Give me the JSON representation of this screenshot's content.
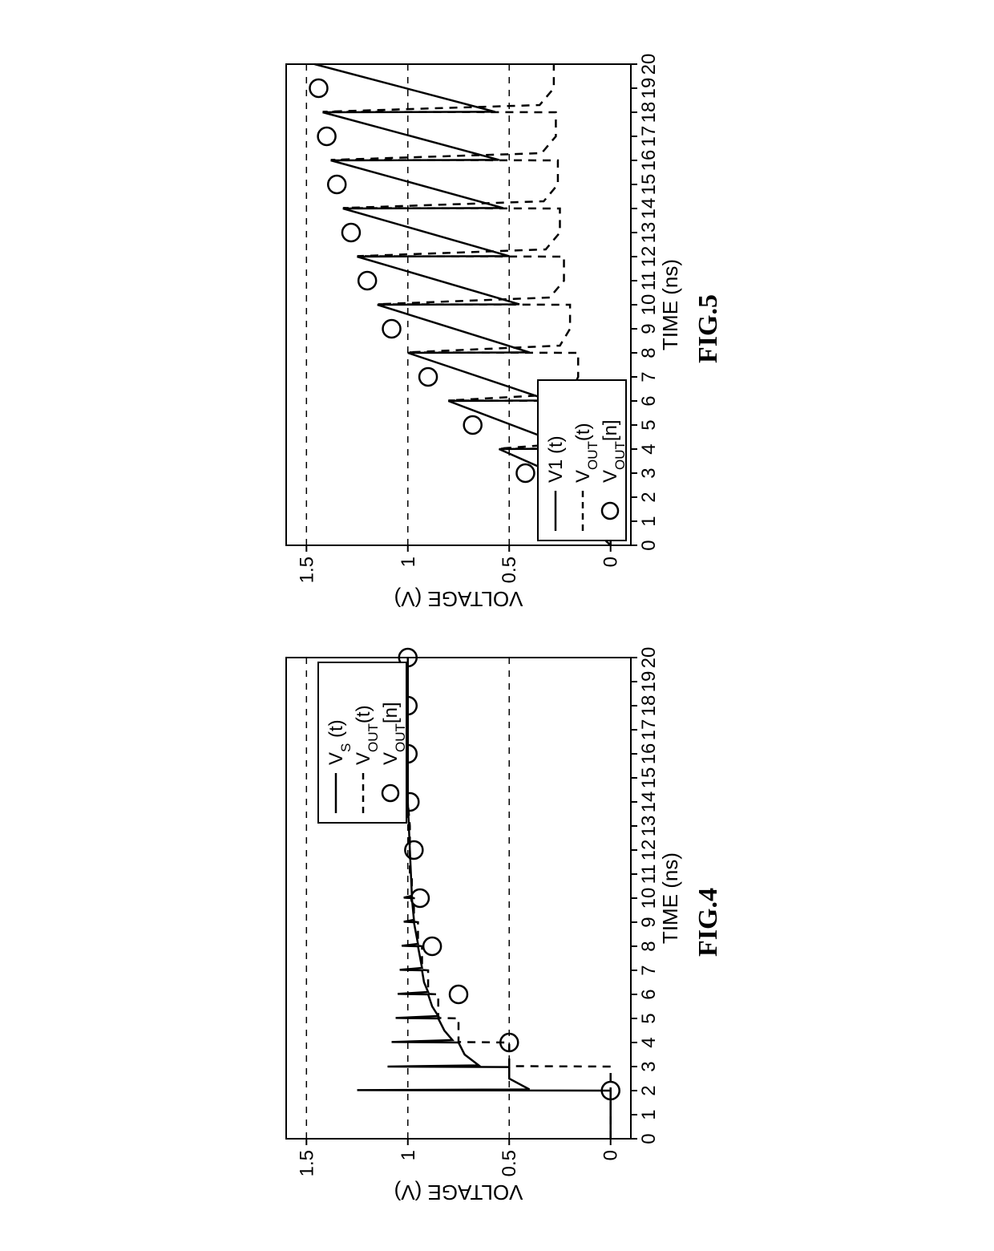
{
  "figure4": {
    "type": "line+scatter",
    "caption": "FIG.4",
    "xlabel": "TIME (ns)",
    "ylabel": "VOLTAGE (V)",
    "xlim": [
      0,
      20
    ],
    "ylim": [
      -0.1,
      1.6
    ],
    "xtick_step": 1,
    "ytick_step": 0.5,
    "yticks": [
      0,
      0.5,
      1,
      1.5
    ],
    "vgrid_y": [
      0.5,
      1.0,
      1.5
    ],
    "line_color": "#000000",
    "grid_color": "#000000",
    "grid_dash": "8,8",
    "background_color": "#ffffff",
    "axis_line_width": 2,
    "series_line_width": 2.5,
    "marker_radius": 11,
    "marker_stroke_width": 2.5,
    "label_fontsize": 26,
    "tick_fontsize": 24,
    "legend_fontsize": 24,
    "legend": {
      "position": "upper-right",
      "items": [
        {
          "style": "solid",
          "label_pre": "V",
          "label_sub": "S",
          "label_post": " (t)"
        },
        {
          "style": "dashed",
          "label_pre": "V",
          "label_sub": "OUT",
          "label_post": "(t)"
        },
        {
          "style": "marker",
          "label_pre": "V",
          "label_sub": "OUT",
          "label_post": "[n]"
        }
      ]
    },
    "vs_points": [
      [
        0,
        0
      ],
      [
        2,
        0
      ],
      [
        2.02,
        1.25
      ],
      [
        2.05,
        0.4
      ],
      [
        2.5,
        0.5
      ],
      [
        2.98,
        0.5
      ],
      [
        3,
        1.1
      ],
      [
        3.05,
        0.65
      ],
      [
        3.5,
        0.72
      ],
      [
        4,
        0.75
      ],
      [
        4.02,
        1.08
      ],
      [
        4.1,
        0.78
      ],
      [
        4.5,
        0.82
      ],
      [
        5,
        0.85
      ],
      [
        5.02,
        1.06
      ],
      [
        5.1,
        0.85
      ],
      [
        5.5,
        0.88
      ],
      [
        6,
        0.9
      ],
      [
        6.02,
        1.05
      ],
      [
        6.1,
        0.9
      ],
      [
        6.5,
        0.92
      ],
      [
        7,
        0.93
      ],
      [
        7.02,
        1.04
      ],
      [
        7.1,
        0.93
      ],
      [
        8,
        0.95
      ],
      [
        8.02,
        1.03
      ],
      [
        8.1,
        0.95
      ],
      [
        9,
        0.97
      ],
      [
        9.02,
        1.02
      ],
      [
        9.1,
        0.97
      ],
      [
        10,
        0.98
      ],
      [
        10.02,
        1.02
      ],
      [
        10.1,
        0.98
      ],
      [
        12,
        0.99
      ],
      [
        14,
        1.0
      ],
      [
        16,
        1.0
      ],
      [
        18,
        1.0
      ],
      [
        20,
        1.0
      ]
    ],
    "vout_points": [
      [
        0,
        0
      ],
      [
        2,
        0
      ],
      [
        3,
        0
      ],
      [
        3.02,
        0.5
      ],
      [
        4,
        0.5
      ],
      [
        4.02,
        0.75
      ],
      [
        5,
        0.75
      ],
      [
        5.02,
        0.85
      ],
      [
        6,
        0.85
      ],
      [
        6.02,
        0.9
      ],
      [
        7,
        0.9
      ],
      [
        7.02,
        0.93
      ],
      [
        8,
        0.93
      ],
      [
        8.02,
        0.95
      ],
      [
        9,
        0.95
      ],
      [
        9.02,
        0.97
      ],
      [
        10,
        0.97
      ],
      [
        10.02,
        0.98
      ],
      [
        11,
        0.98
      ],
      [
        11.02,
        0.99
      ],
      [
        12,
        0.99
      ],
      [
        13,
        0.99
      ],
      [
        14,
        1.0
      ],
      [
        16,
        1.0
      ],
      [
        18,
        1.0
      ],
      [
        20,
        1.0
      ]
    ],
    "samples": [
      [
        2,
        0
      ],
      [
        4,
        0.5
      ],
      [
        6,
        0.75
      ],
      [
        8,
        0.88
      ],
      [
        10,
        0.94
      ],
      [
        12,
        0.97
      ],
      [
        14,
        0.99
      ],
      [
        16,
        1.0
      ],
      [
        18,
        1.0
      ],
      [
        20,
        1.0
      ]
    ]
  },
  "figure5": {
    "type": "line+scatter",
    "caption": "FIG.5",
    "xlabel": "TIME (ns)",
    "ylabel": "VOLTAGE (V)",
    "xlim": [
      0,
      20
    ],
    "ylim": [
      -0.1,
      1.6
    ],
    "xtick_step": 1,
    "ytick_step": 0.5,
    "yticks": [
      0,
      0.5,
      1,
      1.5
    ],
    "vgrid_y": [
      0.5,
      1.0,
      1.5
    ],
    "line_color": "#000000",
    "grid_color": "#000000",
    "grid_dash": "8,8",
    "background_color": "#ffffff",
    "axis_line_width": 2,
    "series_line_width": 2.5,
    "marker_radius": 11,
    "marker_stroke_width": 2.5,
    "label_fontsize": 26,
    "tick_fontsize": 24,
    "legend_fontsize": 24,
    "legend": {
      "position": "lower-left",
      "items": [
        {
          "style": "solid",
          "label_pre": "V1 (t)",
          "label_sub": "",
          "label_post": ""
        },
        {
          "style": "dashed",
          "label_pre": "V",
          "label_sub": "OUT",
          "label_post": "(t)"
        },
        {
          "style": "marker",
          "label_pre": "V",
          "label_sub": "OUT",
          "label_post": "[n]"
        }
      ]
    },
    "v1_points": [
      [
        0,
        0
      ],
      [
        2,
        0.25
      ],
      [
        2.02,
        0.02
      ],
      [
        4,
        0.55
      ],
      [
        4.02,
        0.18
      ],
      [
        6,
        0.8
      ],
      [
        6.02,
        0.3
      ],
      [
        8,
        1.0
      ],
      [
        8.02,
        0.4
      ],
      [
        10,
        1.15
      ],
      [
        10.02,
        0.45
      ],
      [
        12,
        1.25
      ],
      [
        12.02,
        0.5
      ],
      [
        14,
        1.32
      ],
      [
        14.02,
        0.53
      ],
      [
        16,
        1.38
      ],
      [
        16.02,
        0.55
      ],
      [
        18,
        1.42
      ],
      [
        18.02,
        0.57
      ],
      [
        20,
        1.46
      ]
    ],
    "vout_points": [
      [
        0,
        0
      ],
      [
        2,
        0
      ],
      [
        2.02,
        0.25
      ],
      [
        2.3,
        0.05
      ],
      [
        3,
        0.04
      ],
      [
        4,
        0.04
      ],
      [
        4.02,
        0.55
      ],
      [
        4.3,
        0.12
      ],
      [
        5,
        0.1
      ],
      [
        6,
        0.1
      ],
      [
        6.02,
        0.8
      ],
      [
        6.3,
        0.2
      ],
      [
        7,
        0.16
      ],
      [
        8,
        0.16
      ],
      [
        8.02,
        1.0
      ],
      [
        8.3,
        0.25
      ],
      [
        9,
        0.2
      ],
      [
        10,
        0.2
      ],
      [
        10.02,
        1.15
      ],
      [
        10.3,
        0.3
      ],
      [
        11,
        0.23
      ],
      [
        12,
        0.23
      ],
      [
        12.02,
        1.25
      ],
      [
        12.3,
        0.32
      ],
      [
        13,
        0.25
      ],
      [
        14,
        0.25
      ],
      [
        14.02,
        1.32
      ],
      [
        14.3,
        0.33
      ],
      [
        15,
        0.26
      ],
      [
        16,
        0.26
      ],
      [
        16.02,
        1.38
      ],
      [
        16.3,
        0.34
      ],
      [
        17,
        0.27
      ],
      [
        18,
        0.27
      ],
      [
        18.02,
        1.42
      ],
      [
        18.3,
        0.35
      ],
      [
        19,
        0.28
      ],
      [
        20,
        0.28
      ]
    ],
    "samples": [
      [
        1,
        0.12
      ],
      [
        3,
        0.42
      ],
      [
        5,
        0.68
      ],
      [
        7,
        0.9
      ],
      [
        9,
        1.08
      ],
      [
        11,
        1.2
      ],
      [
        13,
        1.28
      ],
      [
        15,
        1.35
      ],
      [
        17,
        1.4
      ],
      [
        19,
        1.44
      ]
    ]
  }
}
